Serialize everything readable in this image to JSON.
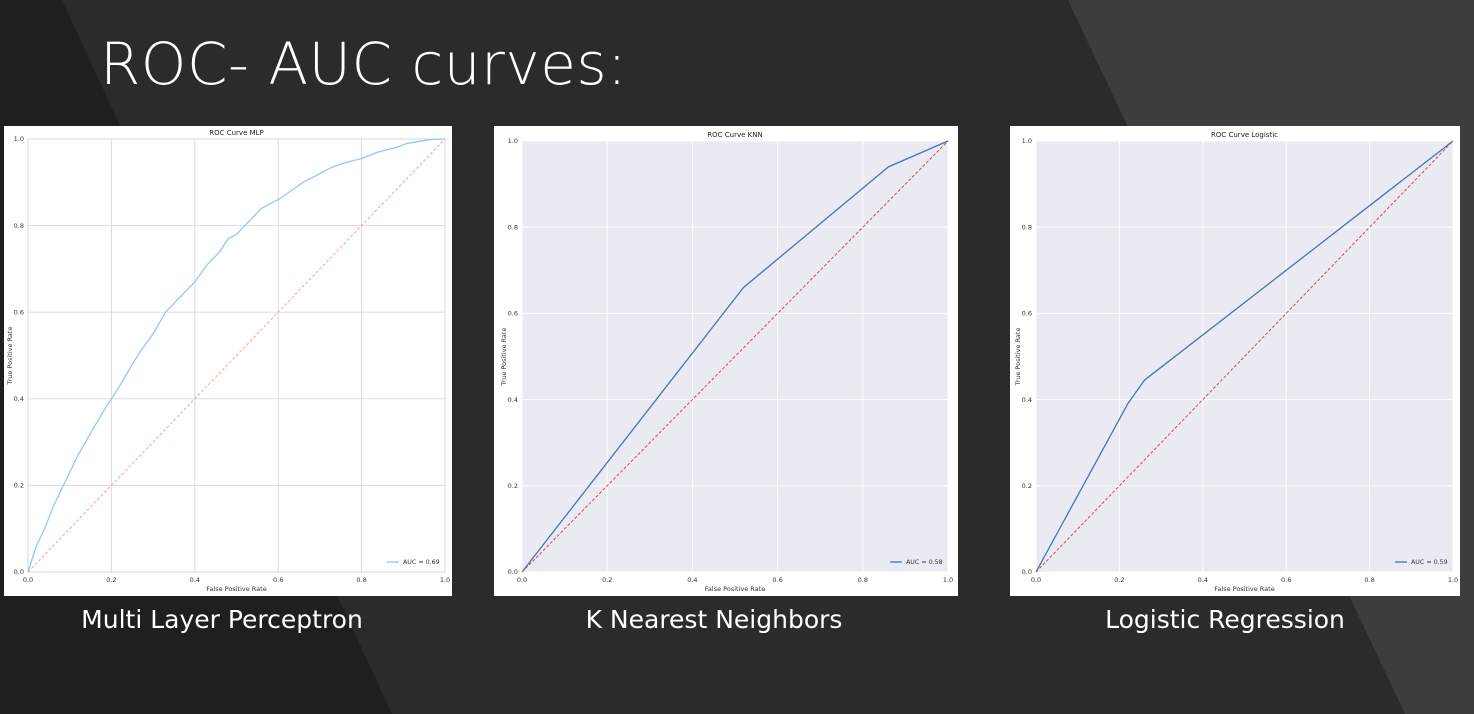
{
  "slide": {
    "title": "ROC- AUC curves:",
    "background_color": "#2b2b2b",
    "captions": [
      "Multi Layer Perceptron",
      "K Nearest Neighbors",
      "Logistic Regression"
    ]
  },
  "chart_data": [
    {
      "type": "line",
      "title": "ROC Curve MLP",
      "xlabel": "False Positive Rate",
      "ylabel": "True Positive Rate",
      "xlim": [
        0,
        1
      ],
      "ylim": [
        0,
        1
      ],
      "x_ticks": [
        "0.0",
        "0.2",
        "0.4",
        "0.6",
        "0.8",
        "1.0"
      ],
      "y_ticks": [
        "0.0",
        "0.2",
        "0.4",
        "0.6",
        "0.8",
        "1.0"
      ],
      "grid": true,
      "style": "white-grid",
      "legend_position": "lower right",
      "series": [
        {
          "name": "AUC = 0.69",
          "color": "#92c6ff",
          "x": [
            0,
            0.01,
            0.02,
            0.04,
            0.06,
            0.08,
            0.1,
            0.12,
            0.15,
            0.18,
            0.2,
            0.22,
            0.25,
            0.27,
            0.3,
            0.33,
            0.36,
            0.4,
            0.43,
            0.46,
            0.48,
            0.5,
            0.53,
            0.56,
            0.58,
            0.6,
            0.63,
            0.66,
            0.7,
            0.73,
            0.76,
            0.8,
            0.84,
            0.88,
            0.91,
            0.94,
            0.97,
            1.0
          ],
          "y": [
            0,
            0.03,
            0.06,
            0.1,
            0.15,
            0.19,
            0.23,
            0.27,
            0.32,
            0.37,
            0.4,
            0.43,
            0.48,
            0.51,
            0.55,
            0.6,
            0.63,
            0.67,
            0.71,
            0.74,
            0.77,
            0.78,
            0.81,
            0.84,
            0.85,
            0.86,
            0.88,
            0.9,
            0.92,
            0.935,
            0.945,
            0.955,
            0.97,
            0.98,
            0.99,
            0.995,
            0.999,
            1.0
          ]
        },
        {
          "name": "",
          "color": "#ff9f9a",
          "dashed": true,
          "x": [
            0,
            1
          ],
          "y": [
            0,
            1
          ]
        }
      ]
    },
    {
      "type": "line",
      "title": "ROC Curve KNN",
      "xlabel": "False Positive Rate",
      "ylabel": "True Positive Rate",
      "xlim": [
        0,
        1
      ],
      "ylim": [
        0,
        1
      ],
      "x_ticks": [
        "0.0",
        "0.2",
        "0.4",
        "0.6",
        "0.8",
        "1.0"
      ],
      "y_ticks": [
        "0.0",
        "0.2",
        "0.4",
        "0.6",
        "0.8",
        "1.0"
      ],
      "grid": true,
      "style": "dark-grid",
      "legend_position": "lower right",
      "series": [
        {
          "name": "AUC = 0.58",
          "color": "#4c72b0",
          "x": [
            0,
            0.52,
            0.86,
            1.0
          ],
          "y": [
            0,
            0.66,
            0.94,
            1.0
          ]
        },
        {
          "name": "",
          "color": "#c44e52",
          "dashed": true,
          "x": [
            0,
            1
          ],
          "y": [
            0,
            1
          ]
        }
      ]
    },
    {
      "type": "line",
      "title": "ROC Curve Logistic",
      "xlabel": "False Positive Rate",
      "ylabel": "True Positive Rate",
      "xlim": [
        0,
        1
      ],
      "ylim": [
        0,
        1
      ],
      "x_ticks": [
        "0.0",
        "0.2",
        "0.4",
        "0.6",
        "0.8",
        "1.0"
      ],
      "y_ticks": [
        "0.0",
        "0.2",
        "0.4",
        "0.6",
        "0.8",
        "1.0"
      ],
      "grid": true,
      "style": "dark-grid",
      "legend_position": "lower right",
      "series": [
        {
          "name": "AUC = 0.59",
          "color": "#4c72b0",
          "x": [
            0,
            0.22,
            0.26,
            1.0
          ],
          "y": [
            0,
            0.39,
            0.445,
            1.0
          ]
        },
        {
          "name": "",
          "color": "#c44e52",
          "dashed": true,
          "x": [
            0,
            1
          ],
          "y": [
            0,
            1
          ]
        }
      ]
    }
  ]
}
